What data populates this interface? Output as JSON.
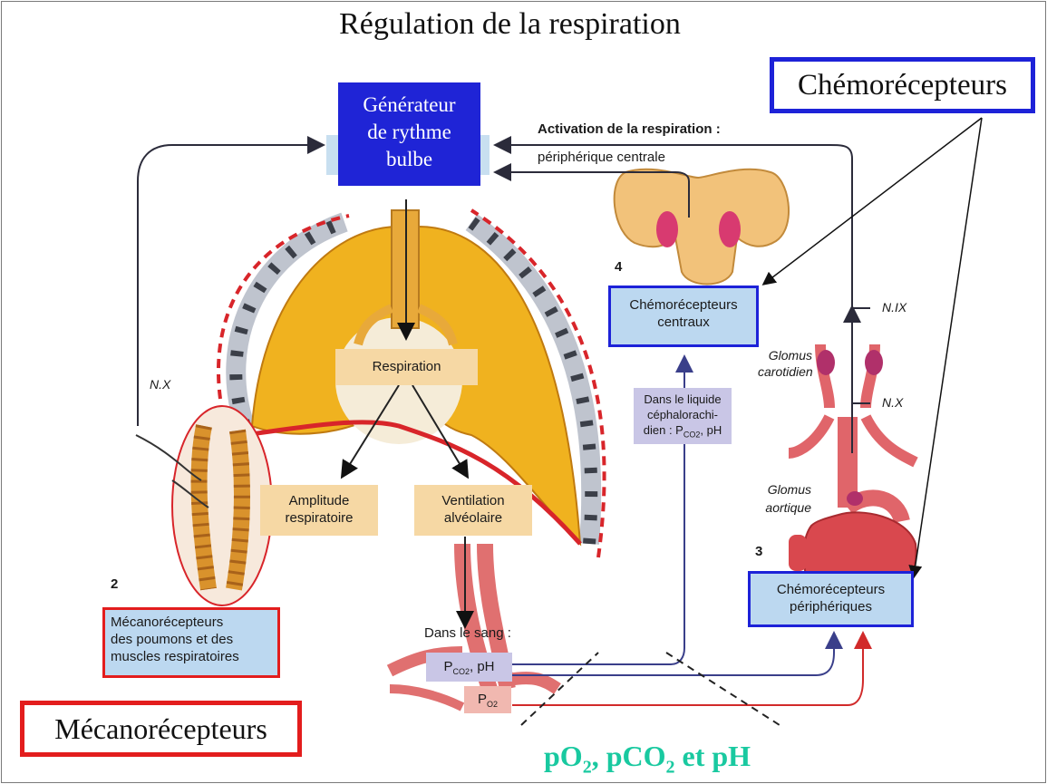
{
  "title": "Régulation de la respiration",
  "generator": [
    "Générateur",
    "de rythme",
    "bulbe"
  ],
  "chemo_title": "Chémorécepteurs",
  "meca_title": "Mécanorécepteurs",
  "activation_title": "Activation de la respiration :",
  "activation_sub": "périphérique centrale",
  "respiration_label": "Respiration",
  "amplitude": [
    "Amplitude",
    "respiratoire"
  ],
  "ventilation": [
    "Ventilation",
    "alvéolaire"
  ],
  "central_chemo": [
    "Chémorécepteurs",
    "centraux"
  ],
  "peripheral_chemo": [
    "Chémorécepteurs",
    "périphériques"
  ],
  "meca_box": [
    "Mécanorécepteurs",
    "des poumons et des",
    "muscles respiratoires"
  ],
  "csf_box": [
    "Dans le liquide",
    "céphalorachi-",
    "dien : P",
    "CO2",
    ", pH"
  ],
  "blood_label": "Dans le sang :",
  "pco2_label": [
    "P",
    "CO2",
    ", pH"
  ],
  "po2_label": [
    "P",
    "O2"
  ],
  "nerve_x": "N.X",
  "nerve_ix": "N.IX",
  "nerve_x_right": "N.X",
  "glomus_carotid": [
    "Glomus",
    "carotidien"
  ],
  "glomus_aortic": [
    "Glomus",
    "aortique"
  ],
  "num_2": "2",
  "num_3": "3",
  "num_4": "4",
  "bottom_label": [
    "pO",
    "2",
    ", pCO",
    "2",
    " et pH"
  ],
  "colors": {
    "generator_blue": "#1f24d6",
    "chemo_border_blue": "#1d22d8",
    "meca_border_red": "#e31d1d",
    "lung_yellow": "#f1b21e",
    "box_lightblue": "#bcd8f0",
    "bottom_green": "#19c9a0"
  }
}
